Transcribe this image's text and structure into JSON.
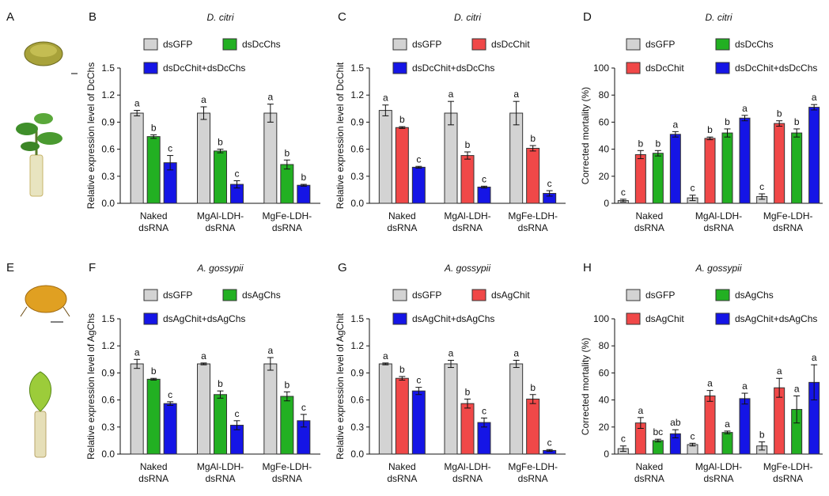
{
  "chart_data": [
    {
      "type": "bar",
      "panel": "B",
      "title": "D. citri",
      "ylabel": "Relative expression level of DcChs",
      "categories": [
        [
          "Naked",
          "dsRNA"
        ],
        [
          "MgAl-LDH-",
          "dsRNA"
        ],
        [
          "MgFe-LDH-",
          "dsRNA"
        ]
      ],
      "ylim": [
        0,
        1.5
      ],
      "yticks": [
        {
          "value": 0,
          "label": "0.0"
        },
        0.3,
        0.6,
        0.9,
        1.2,
        1.5
      ],
      "series": [
        {
          "name": "dsGFP",
          "color": "#d3d3d3",
          "values": [
            1.0,
            1.0,
            1.0
          ],
          "errors": [
            0.03,
            0.07,
            0.1
          ],
          "letters": [
            "a",
            "a",
            "a"
          ]
        },
        {
          "name": "dsDcChs",
          "color": "#22b022",
          "values": [
            0.74,
            0.58,
            0.43
          ],
          "errors": [
            0.02,
            0.02,
            0.05
          ],
          "letters": [
            "b",
            "b",
            "b"
          ]
        },
        {
          "name": "dsDcChit+dsDcChs",
          "color": "#1515e6",
          "values": [
            0.45,
            0.21,
            0.2
          ],
          "errors": [
            0.08,
            0.04,
            0.01
          ],
          "letters": [
            "c",
            "c",
            "b"
          ]
        }
      ]
    },
    {
      "type": "bar",
      "panel": "C",
      "title": "D. citri",
      "ylabel": "Relative expression level of DcChit",
      "categories": [
        [
          "Naked",
          "dsRNA"
        ],
        [
          "MgAl-LDH-",
          "dsRNA"
        ],
        [
          "MgFe-LDH-",
          "dsRNA"
        ]
      ],
      "ylim": [
        0,
        1.5
      ],
      "yticks": [
        {
          "value": 0,
          "label": "0.0"
        },
        0.3,
        0.6,
        0.9,
        1.2,
        1.5
      ],
      "series": [
        {
          "name": "dsGFP",
          "color": "#d3d3d3",
          "values": [
            1.03,
            1.0,
            1.0
          ],
          "errors": [
            0.06,
            0.13,
            0.13
          ],
          "letters": [
            "a",
            "a",
            "a"
          ]
        },
        {
          "name": "dsDcChit",
          "color": "#f04848",
          "values": [
            0.84,
            0.53,
            0.61
          ],
          "errors": [
            0.01,
            0.04,
            0.03
          ],
          "letters": [
            "b",
            "b",
            "b"
          ]
        },
        {
          "name": "dsDcChit+dsDcChs",
          "color": "#1515e6",
          "values": [
            0.4,
            0.18,
            0.11
          ],
          "errors": [
            0.01,
            0.01,
            0.03
          ],
          "letters": [
            "c",
            "c",
            "c"
          ]
        }
      ]
    },
    {
      "type": "bar",
      "panel": "D",
      "title": "D. citri",
      "ylabel": "Corrected mortality (%)",
      "categories": [
        [
          "Naked",
          "dsRNA"
        ],
        [
          "MgAl-LDH-",
          "dsRNA"
        ],
        [
          "MgFe-LDH-",
          "dsRNA"
        ]
      ],
      "ylim": [
        0,
        100
      ],
      "yticks": [
        0,
        20,
        40,
        60,
        80,
        100
      ],
      "series": [
        {
          "name": "dsGFP",
          "color": "#d3d3d3",
          "values": [
            2,
            4,
            5
          ],
          "errors": [
            1,
            2,
            2
          ],
          "letters": [
            "c",
            "c",
            "c"
          ]
        },
        {
          "name": "dsDcChit",
          "color": "#f04848",
          "values": [
            36,
            48,
            59
          ],
          "errors": [
            3,
            1,
            2
          ],
          "letters": [
            "b",
            "b",
            "b"
          ]
        },
        {
          "name": "dsDcChs",
          "color": "#22b022",
          "values": [
            37,
            52,
            52
          ],
          "errors": [
            2,
            3,
            3
          ],
          "letters": [
            "b",
            "b",
            "b"
          ]
        },
        {
          "name": "dsDcChit+dsDcChs",
          "color": "#1515e6",
          "values": [
            51,
            63,
            71
          ],
          "errors": [
            2,
            2,
            2
          ],
          "letters": [
            "a",
            "a",
            "a"
          ]
        }
      ]
    },
    {
      "type": "bar",
      "panel": "F",
      "title": "A. gossypii",
      "ylabel": "Relative expression level of AgChs",
      "categories": [
        [
          "Naked",
          "dsRNA"
        ],
        [
          "MgAl-LDH-",
          "dsRNA"
        ],
        [
          "MgFe-LDH-",
          "dsRNA"
        ]
      ],
      "ylim": [
        0,
        1.5
      ],
      "yticks": [
        {
          "value": 0,
          "label": "0.0"
        },
        0.3,
        0.6,
        0.9,
        1.2,
        1.5
      ],
      "series": [
        {
          "name": "dsGFP",
          "color": "#d3d3d3",
          "values": [
            1.0,
            1.0,
            1.0
          ],
          "errors": [
            0.05,
            0.01,
            0.07
          ],
          "letters": [
            "a",
            "a",
            "a"
          ]
        },
        {
          "name": "dsAgChs",
          "color": "#22b022",
          "values": [
            0.83,
            0.66,
            0.64
          ],
          "errors": [
            0.01,
            0.04,
            0.05
          ],
          "letters": [
            "b",
            "b",
            "b"
          ]
        },
        {
          "name": "dsAgChit+dsAgChs",
          "color": "#1515e6",
          "values": [
            0.56,
            0.32,
            0.37
          ],
          "errors": [
            0.02,
            0.05,
            0.07
          ],
          "letters": [
            "c",
            "c",
            "c"
          ]
        }
      ]
    },
    {
      "type": "bar",
      "panel": "G",
      "title": "A. gossypii",
      "ylabel": "Relative expression level of AgChit",
      "categories": [
        [
          "Naked",
          "dsRNA"
        ],
        [
          "MgAl-LDH-",
          "dsRNA"
        ],
        [
          "MgFe-LDH-",
          "dsRNA"
        ]
      ],
      "ylim": [
        0,
        1.5
      ],
      "yticks": [
        {
          "value": 0,
          "label": "0.0"
        },
        0.3,
        0.6,
        0.9,
        1.2,
        1.5
      ],
      "series": [
        {
          "name": "dsGFP",
          "color": "#d3d3d3",
          "values": [
            1.0,
            1.0,
            1.0
          ],
          "errors": [
            0.01,
            0.04,
            0.04
          ],
          "letters": [
            "a",
            "a",
            "a"
          ]
        },
        {
          "name": "dsAgChit",
          "color": "#f04848",
          "values": [
            0.84,
            0.56,
            0.61
          ],
          "errors": [
            0.02,
            0.05,
            0.05
          ],
          "letters": [
            "b",
            "b",
            "b"
          ]
        },
        {
          "name": "dsAgChit+dsAgChs",
          "color": "#1515e6",
          "values": [
            0.7,
            0.35,
            0.04
          ],
          "errors": [
            0.04,
            0.05,
            0.01
          ],
          "letters": [
            "c",
            "c",
            "c"
          ]
        }
      ]
    },
    {
      "type": "bar",
      "panel": "H",
      "title": "A. gossypii",
      "ylabel": "Corrected mortality (%)",
      "categories": [
        [
          "Naked",
          "dsRNA"
        ],
        [
          "MgAl-LDH-",
          "dsRNA"
        ],
        [
          "MgFe-LDH-",
          "dsRNA"
        ]
      ],
      "ylim": [
        0,
        100
      ],
      "yticks": [
        0,
        20,
        40,
        60,
        80,
        100
      ],
      "series": [
        {
          "name": "dsGFP",
          "color": "#d3d3d3",
          "values": [
            4,
            7,
            6
          ],
          "errors": [
            2,
            1,
            3
          ],
          "letters": [
            "c",
            "c",
            "b"
          ]
        },
        {
          "name": "dsAgChit",
          "color": "#f04848",
          "values": [
            23,
            43,
            49
          ],
          "errors": [
            4,
            4,
            7
          ],
          "letters": [
            "a",
            "a",
            "a"
          ]
        },
        {
          "name": "dsAgChs",
          "color": "#22b022",
          "values": [
            10,
            16,
            33
          ],
          "errors": [
            1,
            1,
            10
          ],
          "letters": [
            "bc",
            "a",
            "a"
          ]
        },
        {
          "name": "dsAgChit+dsAgChs",
          "color": "#1515e6",
          "values": [
            15,
            41,
            53
          ],
          "errors": [
            3,
            4,
            13
          ],
          "letters": [
            "ab",
            "a",
            "a"
          ]
        }
      ]
    }
  ],
  "image_panels": [
    {
      "label": "A"
    },
    {
      "label": "E"
    }
  ]
}
